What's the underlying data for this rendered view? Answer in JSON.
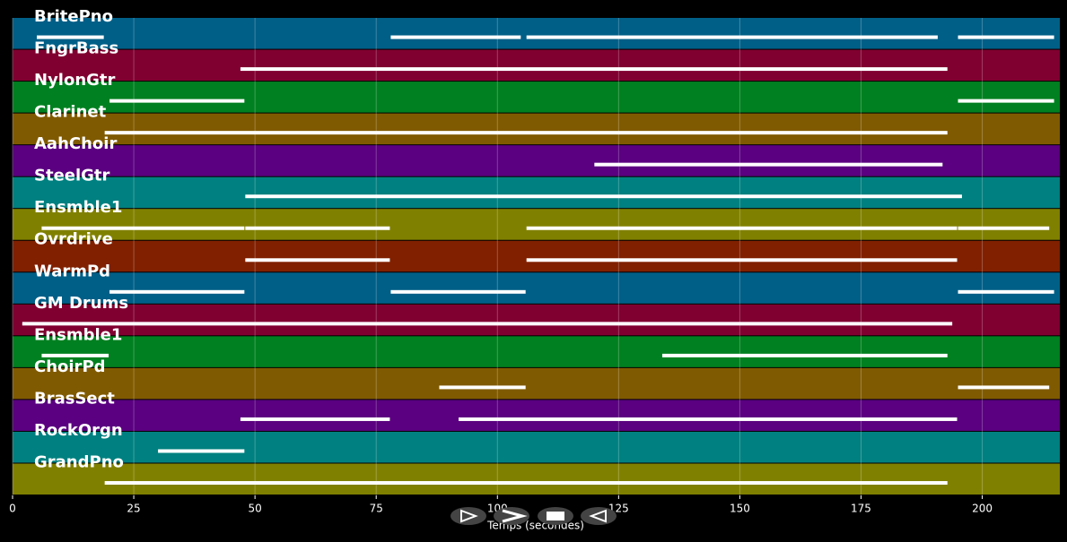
{
  "chart_data": {
    "type": "timeline",
    "x_label": "Temps (secondes)",
    "xlim": [
      0,
      216
    ],
    "xticks": [
      0,
      25,
      50,
      75,
      100,
      125,
      150,
      175,
      200
    ],
    "grid": true,
    "series": [
      {
        "name": "BritePno",
        "color": "#005f87",
        "segments": [
          [
            5,
            19
          ],
          [
            78,
            105
          ],
          [
            106,
            191
          ],
          [
            195,
            215
          ]
        ]
      },
      {
        "name": "FngrBass",
        "color": "#800030",
        "segments": [
          [
            47,
            193
          ]
        ]
      },
      {
        "name": "NylonGtr",
        "color": "#008020",
        "segments": [
          [
            20,
            48
          ],
          [
            195,
            215
          ]
        ]
      },
      {
        "name": "Clarinet",
        "color": "#805a00",
        "segments": [
          [
            19,
            193
          ]
        ]
      },
      {
        "name": "AahChoir",
        "color": "#5a0080",
        "segments": [
          [
            120,
            192
          ]
        ]
      },
      {
        "name": "SteelGtr",
        "color": "#008080",
        "segments": [
          [
            48,
            196
          ]
        ]
      },
      {
        "name": "Ensmble1",
        "color": "#808000",
        "segments": [
          [
            6,
            48
          ],
          [
            48,
            78
          ],
          [
            106,
            195
          ],
          [
            195,
            214
          ]
        ]
      },
      {
        "name": "Ovrdrive",
        "color": "#802000",
        "segments": [
          [
            48,
            78
          ],
          [
            106,
            195
          ]
        ]
      },
      {
        "name": "WarmPd",
        "color": "#005f87",
        "segments": [
          [
            20,
            48
          ],
          [
            78,
            106
          ],
          [
            195,
            215
          ]
        ]
      },
      {
        "name": "GM Drums",
        "color": "#800030",
        "segments": [
          [
            2,
            194
          ]
        ]
      },
      {
        "name": "Ensmble1",
        "color": "#008020",
        "segments": [
          [
            6,
            20
          ],
          [
            134,
            193
          ]
        ]
      },
      {
        "name": "ChoirPd",
        "color": "#805a00",
        "segments": [
          [
            88,
            106
          ],
          [
            195,
            214
          ]
        ]
      },
      {
        "name": "BrasSect",
        "color": "#5a0080",
        "segments": [
          [
            47,
            78
          ],
          [
            92,
            195
          ]
        ]
      },
      {
        "name": "RockOrgn",
        "color": "#008080",
        "segments": [
          [
            30,
            48
          ]
        ]
      },
      {
        "name": "GrandPno",
        "color": "#808000",
        "segments": [
          [
            19,
            193
          ]
        ]
      }
    ]
  }
}
